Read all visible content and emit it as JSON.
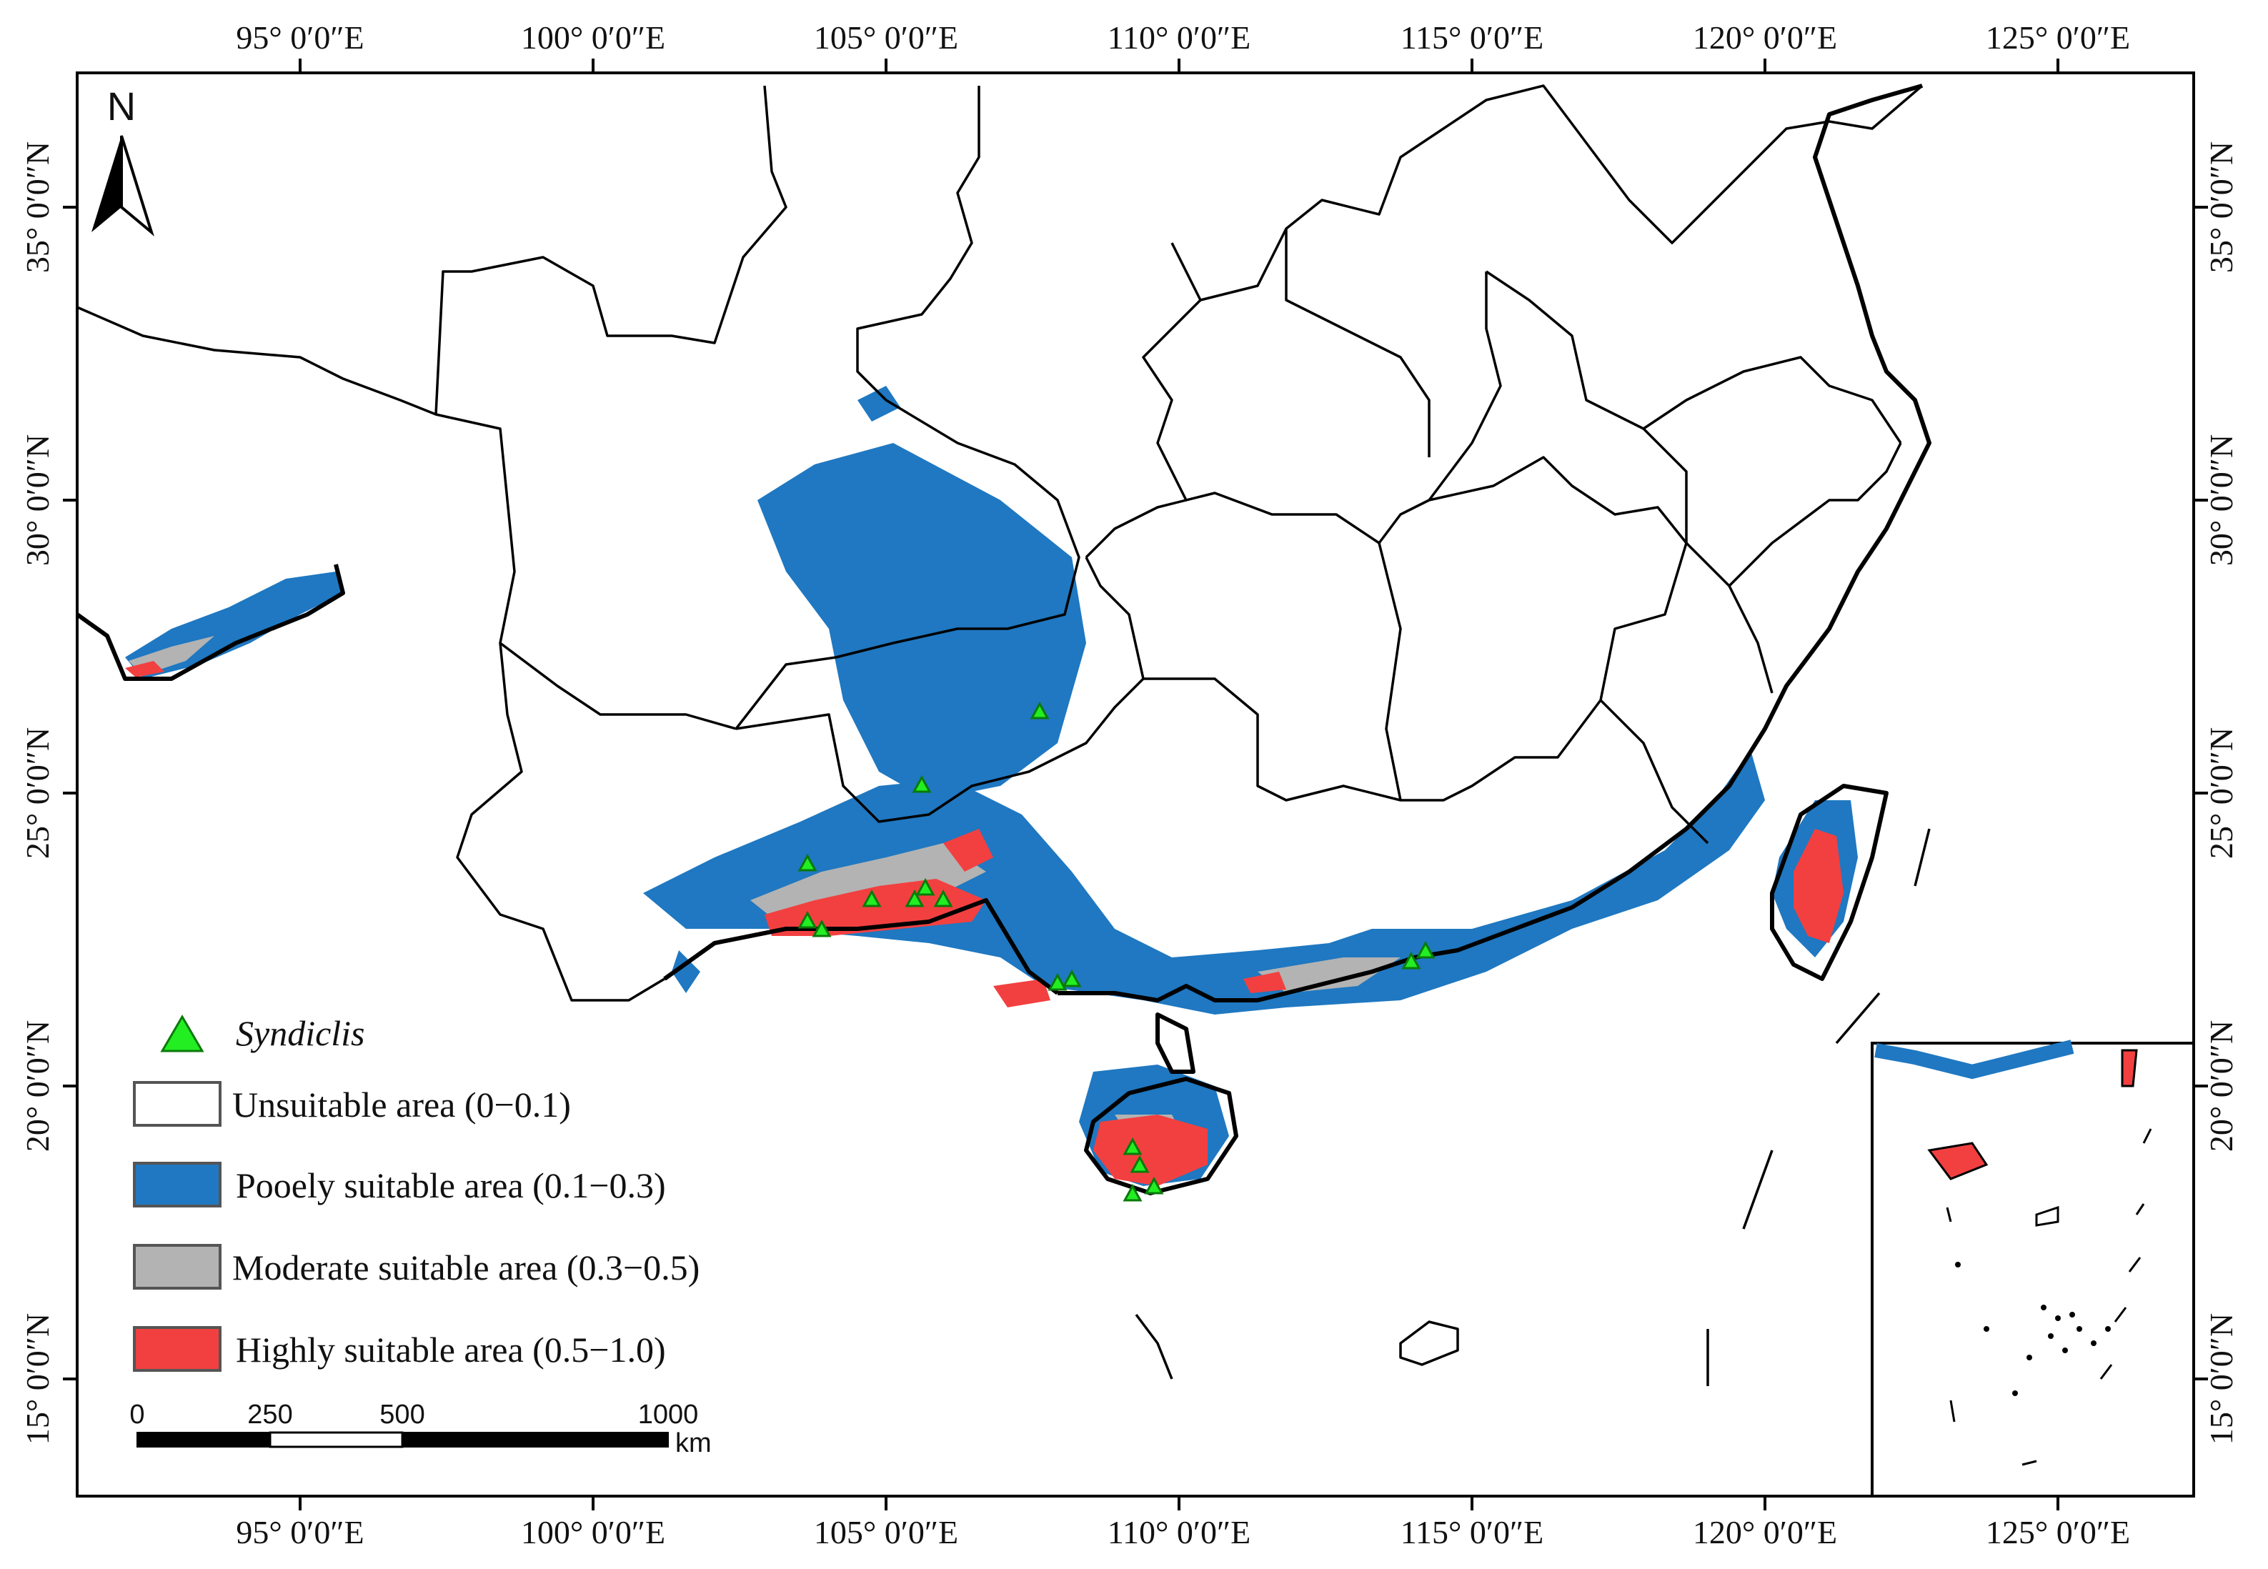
{
  "colors": {
    "unsuitable": "#ffffff",
    "poorly": "#1f78c1",
    "moderate": "#b3b3b3",
    "highly": "#f24040",
    "occurrence": "#22ee22",
    "frame": "#000000"
  },
  "axes": {
    "top_labels": [
      "95° 0′0″E",
      "100° 0′0″E",
      "105° 0′0″E",
      "110° 0′0″E",
      "115° 0′0″E",
      "120° 0′0″E",
      "125° 0′0″E"
    ],
    "bottom_labels": [
      "95° 0′0″E",
      "100° 0′0″E",
      "105° 0′0″E",
      "110° 0′0″E",
      "115° 0′0″E",
      "120° 0′0″E",
      "125° 0′0″E"
    ],
    "left_labels": [
      "35° 0′0″N",
      "30° 0′0″N",
      "25° 0′0″N",
      "20° 0′0″N",
      "15° 0′0″N"
    ],
    "right_labels": [
      "35° 0′0″N",
      "30° 0′0″N",
      "25° 0′0″N",
      "20° 0′0″N",
      "15° 0′0″N"
    ]
  },
  "north_arrow": {
    "label": "N",
    "icon": "north-arrow-icon"
  },
  "legend": {
    "occurrence": {
      "label": "Syndiclis",
      "icon": "green-triangle-icon"
    },
    "classes": [
      {
        "label": "Unsuitable area (0−0.1)",
        "color_key": "unsuitable"
      },
      {
        "label": "Pooely suitable area (0.1−0.3)",
        "color_key": "poorly"
      },
      {
        "label": "Moderate suitable area (0.3−0.5)",
        "color_key": "moderate"
      },
      {
        "label": "Highly suitable area (0.5−1.0)",
        "color_key": "highly"
      }
    ]
  },
  "scale_bar": {
    "ticks": [
      "0",
      "250",
      "500",
      "1000"
    ],
    "unit": "km"
  },
  "inset": {
    "description_icon": "south-china-sea-inset-icon"
  }
}
